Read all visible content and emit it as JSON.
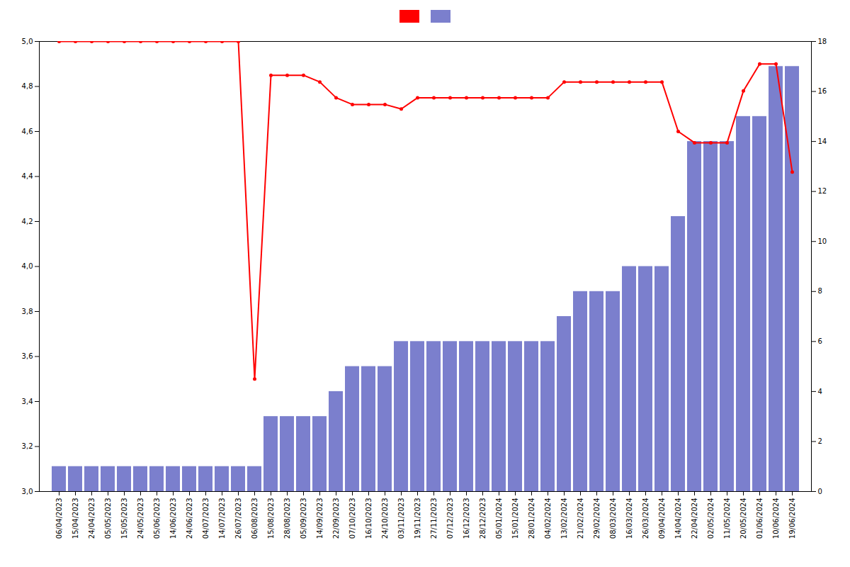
{
  "chart_data": {
    "type": "bar",
    "categories": [
      "06/04/2023",
      "15/04/2023",
      "24/04/2023",
      "05/05/2023",
      "15/05/2023",
      "24/05/2023",
      "05/06/2023",
      "14/06/2023",
      "24/06/2023",
      "04/07/2023",
      "14/07/2023",
      "26/07/2023",
      "06/08/2023",
      "15/08/2023",
      "28/08/2023",
      "05/09/2023",
      "14/09/2023",
      "22/09/2023",
      "07/10/2023",
      "16/10/2023",
      "24/10/2023",
      "03/11/2023",
      "19/11/2023",
      "27/11/2023",
      "07/12/2023",
      "16/12/2023",
      "28/12/2023",
      "05/01/2024",
      "15/01/2024",
      "28/01/2024",
      "04/02/2024",
      "13/02/2024",
      "21/02/2024",
      "29/02/2024",
      "08/03/2024",
      "16/03/2024",
      "26/03/2024",
      "09/04/2024",
      "14/04/2024",
      "22/04/2024",
      "02/05/2024",
      "11/05/2024",
      "20/05/2024",
      "01/06/2024",
      "10/06/2024",
      "19/06/2024"
    ],
    "series": [
      {
        "type": "line",
        "color": "#ff0000",
        "marker": "circle",
        "values": [
          5.0,
          5.0,
          5.0,
          5.0,
          5.0,
          5.0,
          5.0,
          5.0,
          5.0,
          5.0,
          5.0,
          5.0,
          3.5,
          4.85,
          4.85,
          4.85,
          4.82,
          4.75,
          4.72,
          4.72,
          4.72,
          4.7,
          4.75,
          4.75,
          4.75,
          4.75,
          4.75,
          4.75,
          4.75,
          4.75,
          4.75,
          4.82,
          4.82,
          4.82,
          4.82,
          4.82,
          4.82,
          4.82,
          4.6,
          4.55,
          4.55,
          4.55,
          4.78,
          4.9,
          4.9,
          4.42
        ]
      },
      {
        "type": "bar",
        "color": "#7b7fcd",
        "axis": "y2",
        "values": [
          1,
          1,
          1,
          1,
          1,
          1,
          1,
          1,
          1,
          1,
          1,
          1,
          1,
          3,
          3,
          3,
          3,
          4,
          5,
          5,
          5,
          6,
          6,
          6,
          6,
          6,
          6,
          6,
          6,
          6,
          6,
          7,
          8,
          8,
          8,
          9,
          9,
          9,
          11,
          14,
          14,
          14,
          15,
          15,
          17,
          17
        ]
      }
    ],
    "ylim": [
      3.0,
      5.0
    ],
    "yticks": [
      {
        "value": 3.0,
        "label": "3,0"
      },
      {
        "value": 3.2,
        "label": "3,2"
      },
      {
        "value": 3.4,
        "label": "3,4"
      },
      {
        "value": 3.6,
        "label": "3,6"
      },
      {
        "value": 3.8,
        "label": "3,8"
      },
      {
        "value": 4.0,
        "label": "4,0"
      },
      {
        "value": 4.2,
        "label": "4,2"
      },
      {
        "value": 4.4,
        "label": "4,4"
      },
      {
        "value": 4.6,
        "label": "4,6"
      },
      {
        "value": 4.8,
        "label": "4,8"
      },
      {
        "value": 5.0,
        "label": "5,0"
      }
    ],
    "y2lim": [
      0,
      18
    ],
    "y2ticks": [
      0,
      2,
      4,
      6,
      8,
      10,
      12,
      14,
      16,
      18
    ],
    "grid": false,
    "legend": "top"
  }
}
